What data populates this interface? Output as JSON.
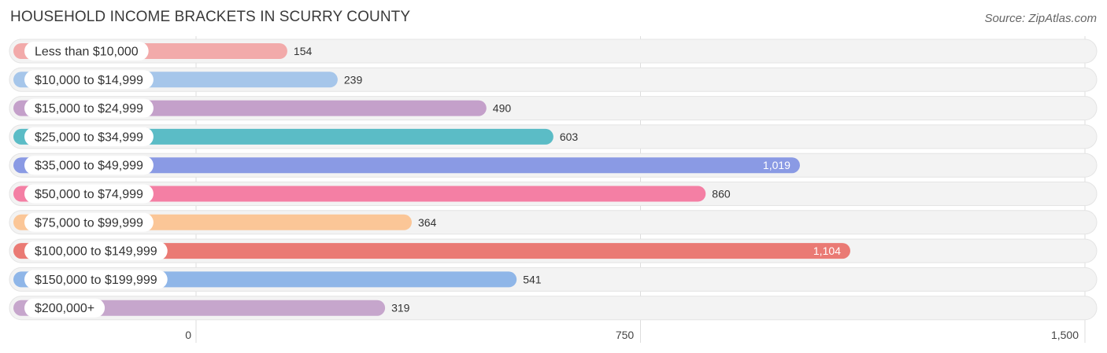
{
  "header": {
    "title": "HOUSEHOLD INCOME BRACKETS IN SCURRY COUNTY",
    "source": "Source: ZipAtlas.com"
  },
  "chart_data": {
    "type": "bar",
    "orientation": "horizontal",
    "title": "HOUSEHOLD INCOME BRACKETS IN SCURRY COUNTY",
    "categories": [
      "Less than $10,000",
      "$10,000 to $14,999",
      "$15,000 to $24,999",
      "$25,000 to $34,999",
      "$35,000 to $49,999",
      "$50,000 to $74,999",
      "$75,000 to $99,999",
      "$100,000 to $149,999",
      "$150,000 to $199,999",
      "$200,000+"
    ],
    "values": [
      154,
      239,
      490,
      603,
      1019,
      860,
      364,
      1104,
      541,
      319
    ],
    "value_labels": [
      "154",
      "239",
      "490",
      "603",
      "1,019",
      "860",
      "364",
      "1,104",
      "541",
      "319"
    ],
    "colors": [
      "#f2aaaa",
      "#a6c6ea",
      "#c4a0ca",
      "#5bbcc6",
      "#8a9ae4",
      "#f47fa4",
      "#fbc697",
      "#ea7a74",
      "#8fb6e8",
      "#c6a6cc"
    ],
    "xlim": [
      0,
      1500
    ],
    "xticks": [
      0,
      750,
      1500
    ],
    "xtick_labels": [
      "0",
      "750",
      "1,500"
    ],
    "grid": true
  }
}
